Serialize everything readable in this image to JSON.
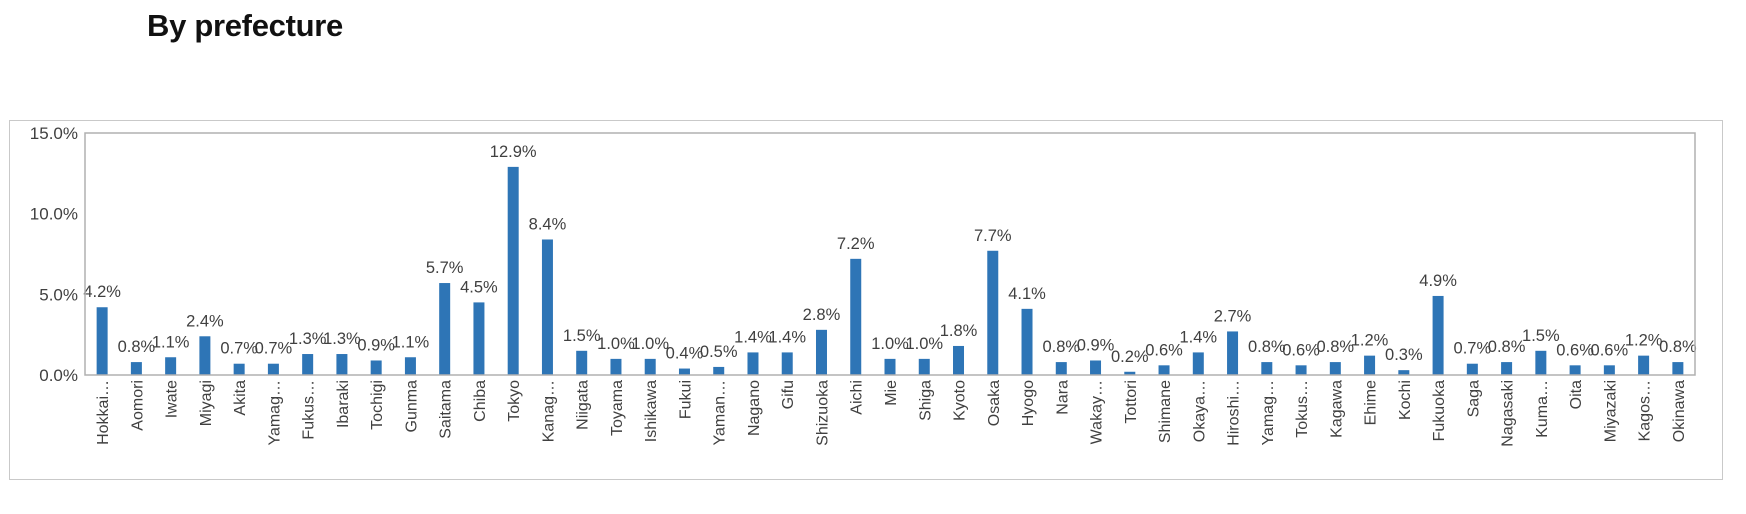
{
  "section_title": "By prefecture",
  "colors": {
    "bar": "#2e75b6",
    "plot_border": "#b0b0b0",
    "frame_border": "#c9c9c9",
    "text": "#404040"
  },
  "chart_data": {
    "type": "bar",
    "title": "",
    "xlabel": "",
    "ylabel": "",
    "ylim": [
      0,
      15
    ],
    "yticks": [
      0,
      5,
      10,
      15
    ],
    "ytick_labels": [
      "0.0%",
      "5.0%",
      "10.0%",
      "15.0%"
    ],
    "grid": false,
    "legend": "none",
    "categories": [
      "Hokkai…",
      "Aomori",
      "Iwate",
      "Miyagi",
      "Akita",
      "Yamag…",
      "Fukus…",
      "Ibaraki",
      "Tochigi",
      "Gunma",
      "Saitama",
      "Chiba",
      "Tokyo",
      "Kanag…",
      "Niigata",
      "Toyama",
      "Ishikawa",
      "Fukui",
      "Yaman…",
      "Nagano",
      "Gifu",
      "Shizuoka",
      "Aichi",
      "Mie",
      "Shiga",
      "Kyoto",
      "Osaka",
      "Hyogo",
      "Nara",
      "Wakay…",
      "Tottori",
      "Shimane",
      "Okaya…",
      "Hiroshi…",
      "Yamag…",
      "Tokus…",
      "Kagawa",
      "Ehime",
      "Kochi",
      "Fukuoka",
      "Saga",
      "Nagasaki",
      "Kuma…",
      "Oita",
      "Miyazaki",
      "Kagos…",
      "Okinawa"
    ],
    "values": [
      4.2,
      0.8,
      1.1,
      2.4,
      0.7,
      0.7,
      1.3,
      1.3,
      0.9,
      1.1,
      5.7,
      4.5,
      12.9,
      8.4,
      1.5,
      1.0,
      1.0,
      0.4,
      0.5,
      1.4,
      1.4,
      2.8,
      7.2,
      1.0,
      1.0,
      1.8,
      7.7,
      4.1,
      0.8,
      0.9,
      0.2,
      0.6,
      1.4,
      2.7,
      0.8,
      0.6,
      0.8,
      1.2,
      0.3,
      4.9,
      0.7,
      0.8,
      1.5,
      0.6,
      0.6,
      1.2,
      0.8
    ],
    "data_labels": [
      "4.2%",
      "0.8%",
      "1.1%",
      "2.4%",
      "0.7%",
      "0.7%",
      "1.3%",
      "1.3%",
      "0.9%",
      "1.1%",
      "5.7%",
      "4.5%",
      "12.9%",
      "8.4%",
      "1.5%",
      "1.0%",
      "1.0%",
      "0.4%",
      "0.5%",
      "1.4%",
      "1.4%",
      "2.8%",
      "7.2%",
      "1.0%",
      "1.0%",
      "1.8%",
      "7.7%",
      "4.1%",
      "0.8%",
      "0.9%",
      "0.2%",
      "0.6%",
      "1.4%",
      "2.7%",
      "0.8%",
      "0.6%",
      "0.8%",
      "1.2%",
      "0.3%",
      "4.9%",
      "0.7%",
      "0.8%",
      "1.5%",
      "0.6%",
      "0.6%",
      "1.2%",
      "0.8%"
    ]
  }
}
